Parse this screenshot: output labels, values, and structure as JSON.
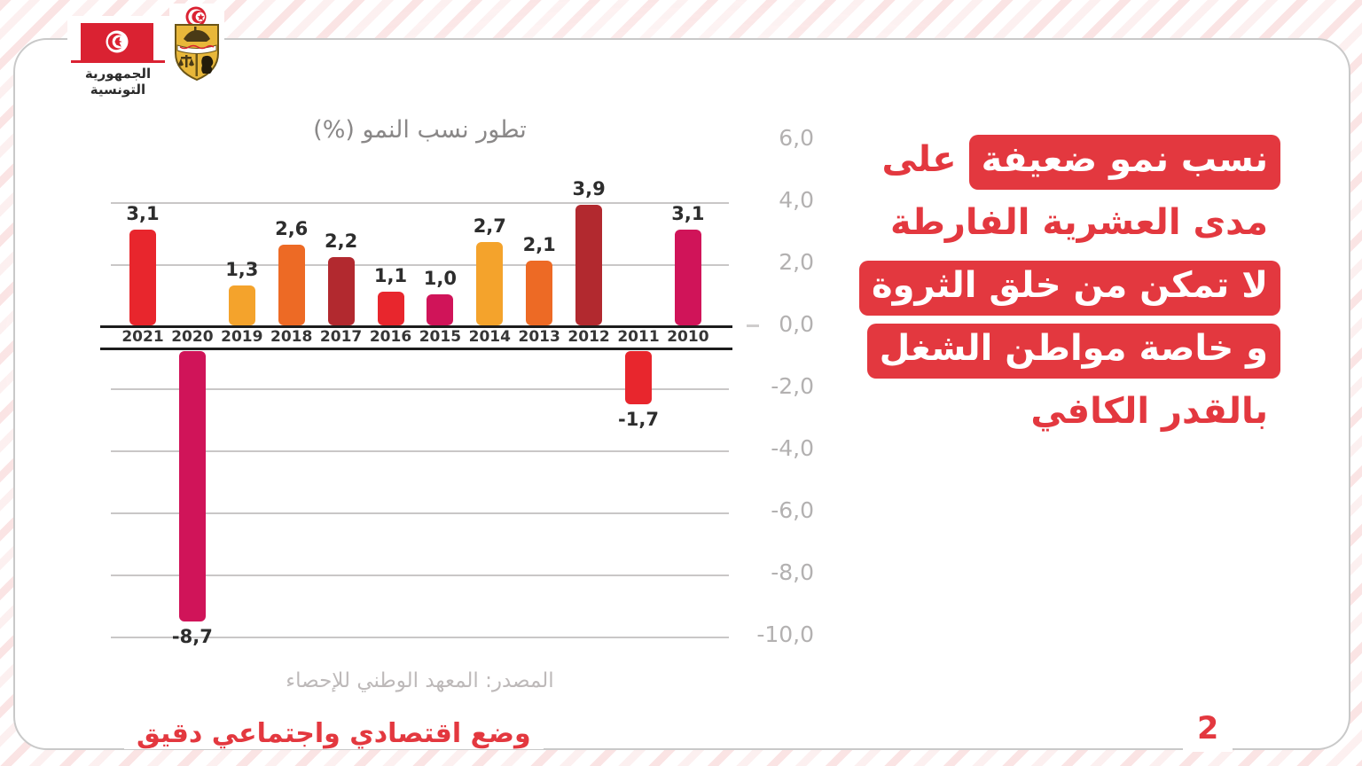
{
  "page": {
    "country_label": "الجمهورية التونسية",
    "footer_title": "وضع اقتصادي واجتماعي دقيق",
    "page_number": "2"
  },
  "chart_data": {
    "type": "bar",
    "title": "تطور نسب النمو (%)",
    "categories": [
      "2021",
      "2020",
      "2019",
      "2018",
      "2017",
      "2016",
      "2015",
      "2014",
      "2013",
      "2012",
      "2011",
      "2010"
    ],
    "values": [
      3.1,
      -8.7,
      1.3,
      2.6,
      2.2,
      1.1,
      1.0,
      2.7,
      2.1,
      3.9,
      -1.7,
      3.1
    ],
    "value_labels": [
      "3,1",
      "-8,7",
      "1,3",
      "2,6",
      "2,2",
      "1,1",
      "1,0",
      "2,7",
      "2,1",
      "3,9",
      "-1,7",
      "3,1"
    ],
    "bar_colors": [
      "#E8262D",
      "#D01459",
      "#F4A32C",
      "#ED6A25",
      "#B2292F",
      "#E8262D",
      "#D01459",
      "#F4A32C",
      "#ED6A25",
      "#B2292F",
      "#E8262D",
      "#D01459"
    ],
    "y_ticks": [
      "6,0",
      "4,0",
      "2,0",
      "0,0",
      "-2,0",
      "-4,0",
      "-6,0",
      "-8,0",
      "-10,0"
    ],
    "ylim": [
      -10,
      6
    ],
    "grid": true,
    "legend_position": "none",
    "source": "المصدر: المعهد الوطني للإحصاء"
  },
  "callout": {
    "lines": [
      {
        "segments": [
          {
            "text": "نسب نمو ضعيفة",
            "highlight": true
          },
          {
            "text": "على",
            "highlight": false
          }
        ]
      },
      {
        "segments": [
          {
            "text": "مدى العشرية الفارطة",
            "highlight": false
          }
        ]
      },
      {
        "segments": [
          {
            "text": "لا تمكن من خلق الثروة",
            "highlight": true
          }
        ]
      },
      {
        "segments": [
          {
            "text": "و خاصة  مواطن الشغل",
            "highlight": true
          }
        ]
      },
      {
        "segments": [
          {
            "text": "بالقدر الكافي",
            "highlight": false
          }
        ]
      }
    ]
  },
  "colors": {
    "accent_red": "#E3383F",
    "axis_black": "#1C1C1C",
    "grid_gray": "#C9C7C7",
    "tick_gray": "#B3B1B1",
    "title_gray": "#8A8888",
    "source_gray": "#BDB9B9",
    "flag_red": "#DA2232",
    "emblem_gold": "#E8B73A"
  }
}
